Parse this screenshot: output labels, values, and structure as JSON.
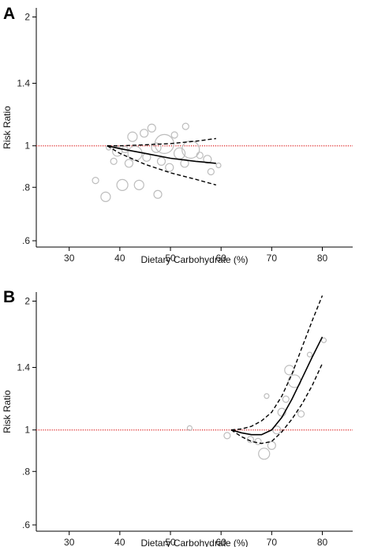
{
  "chart_data": [
    {
      "panel": "A",
      "type": "scatter",
      "xlabel": "Dietary Carbohydrate (%)",
      "ylabel": "Risk Ratio",
      "x_ticks": [
        30,
        40,
        50,
        60,
        70,
        80
      ],
      "y_ticks": [
        0.6,
        0.8,
        1,
        1.4,
        2
      ],
      "y_tick_labels": [
        ".6",
        ".8",
        "1",
        "1.4",
        "2"
      ],
      "y_scale": "log",
      "xlim": [
        23.5,
        86
      ],
      "ylim": [
        0.58,
        2.1
      ],
      "reference_line": 1,
      "points": [
        {
          "x": 35.2,
          "y": 0.83,
          "r": 4
        },
        {
          "x": 37.2,
          "y": 0.76,
          "r": 6
        },
        {
          "x": 37.8,
          "y": 0.99,
          "r": 3
        },
        {
          "x": 38.8,
          "y": 0.92,
          "r": 4
        },
        {
          "x": 39.5,
          "y": 0.97,
          "r": 6
        },
        {
          "x": 40.5,
          "y": 0.81,
          "r": 7
        },
        {
          "x": 41.0,
          "y": 0.98,
          "r": 4
        },
        {
          "x": 41.8,
          "y": 0.91,
          "r": 5
        },
        {
          "x": 42.5,
          "y": 1.05,
          "r": 6
        },
        {
          "x": 43.0,
          "y": 0.96,
          "r": 9
        },
        {
          "x": 43.8,
          "y": 0.81,
          "r": 6
        },
        {
          "x": 44.8,
          "y": 1.07,
          "r": 5
        },
        {
          "x": 45.3,
          "y": 0.94,
          "r": 5
        },
        {
          "x": 46.3,
          "y": 1.1,
          "r": 5
        },
        {
          "x": 47.2,
          "y": 0.99,
          "r": 6
        },
        {
          "x": 47.5,
          "y": 0.77,
          "r": 5
        },
        {
          "x": 48.2,
          "y": 0.92,
          "r": 5
        },
        {
          "x": 48.8,
          "y": 1.01,
          "r": 12
        },
        {
          "x": 49.8,
          "y": 0.89,
          "r": 5
        },
        {
          "x": 50.8,
          "y": 1.06,
          "r": 4
        },
        {
          "x": 51.8,
          "y": 0.96,
          "r": 7
        },
        {
          "x": 52.8,
          "y": 0.91,
          "r": 5
        },
        {
          "x": 53.0,
          "y": 1.11,
          "r": 4
        },
        {
          "x": 54.0,
          "y": 0.98,
          "r": 11
        },
        {
          "x": 55.8,
          "y": 0.95,
          "r": 4
        },
        {
          "x": 57.3,
          "y": 0.93,
          "r": 5
        },
        {
          "x": 58.0,
          "y": 0.87,
          "r": 4
        },
        {
          "x": 59.5,
          "y": 0.9,
          "r": 3
        }
      ],
      "fit": {
        "x": [
          37.5,
          40,
          45,
          50,
          55,
          59
        ],
        "y": [
          1.0,
          0.985,
          0.96,
          0.935,
          0.92,
          0.91
        ]
      },
      "ci_upper": {
        "x": [
          37.5,
          40,
          45,
          50,
          55,
          59
        ],
        "y": [
          1.0,
          1.0,
          1.005,
          1.012,
          1.025,
          1.04
        ]
      },
      "ci_lower": {
        "x": [
          37.5,
          40,
          45,
          50,
          55,
          59
        ],
        "y": [
          1.0,
          0.96,
          0.905,
          0.865,
          0.835,
          0.81
        ]
      }
    },
    {
      "panel": "B",
      "type": "scatter",
      "xlabel": "Dietary Carbohydrate (%)",
      "ylabel": "Risk Ratio",
      "x_ticks": [
        30,
        40,
        50,
        60,
        70,
        80
      ],
      "y_ticks": [
        0.6,
        0.8,
        1,
        1.4,
        2
      ],
      "y_tick_labels": [
        ".6",
        ".8",
        "1",
        "1.4",
        "2"
      ],
      "y_scale": "log",
      "xlim": [
        23.5,
        86
      ],
      "ylim": [
        0.58,
        2.1
      ],
      "reference_line": 1,
      "points": [
        {
          "x": 53.8,
          "y": 1.01,
          "r": 3
        },
        {
          "x": 61.2,
          "y": 0.97,
          "r": 4
        },
        {
          "x": 65.8,
          "y": 0.95,
          "r": 4
        },
        {
          "x": 67.3,
          "y": 0.94,
          "r": 4
        },
        {
          "x": 68.5,
          "y": 0.88,
          "r": 7
        },
        {
          "x": 69.0,
          "y": 1.2,
          "r": 3
        },
        {
          "x": 70.0,
          "y": 0.92,
          "r": 5
        },
        {
          "x": 71.0,
          "y": 1.0,
          "r": 5
        },
        {
          "x": 72.0,
          "y": 1.1,
          "r": 5
        },
        {
          "x": 72.8,
          "y": 1.18,
          "r": 4
        },
        {
          "x": 73.5,
          "y": 1.38,
          "r": 6
        },
        {
          "x": 74.5,
          "y": 1.3,
          "r": 8
        },
        {
          "x": 75.8,
          "y": 1.09,
          "r": 4
        },
        {
          "x": 77.5,
          "y": 1.5,
          "r": 3
        },
        {
          "x": 80.3,
          "y": 1.62,
          "r": 3
        }
      ],
      "fit": {
        "x": [
          62,
          64,
          66,
          68,
          70,
          72,
          74,
          76,
          78,
          80
        ],
        "y": [
          1.0,
          0.985,
          0.975,
          0.975,
          1.0,
          1.07,
          1.18,
          1.32,
          1.48,
          1.65
        ]
      },
      "ci_upper": {
        "x": [
          62,
          64,
          66,
          68,
          70,
          72,
          74,
          76,
          78,
          80
        ],
        "y": [
          1.0,
          1.005,
          1.02,
          1.05,
          1.1,
          1.2,
          1.35,
          1.56,
          1.8,
          2.06
        ]
      },
      "ci_lower": {
        "x": [
          62,
          64,
          66,
          68,
          70,
          72,
          74,
          76,
          78,
          80
        ],
        "y": [
          1.0,
          0.965,
          0.94,
          0.93,
          0.94,
          0.99,
          1.06,
          1.15,
          1.27,
          1.43
        ]
      }
    }
  ]
}
